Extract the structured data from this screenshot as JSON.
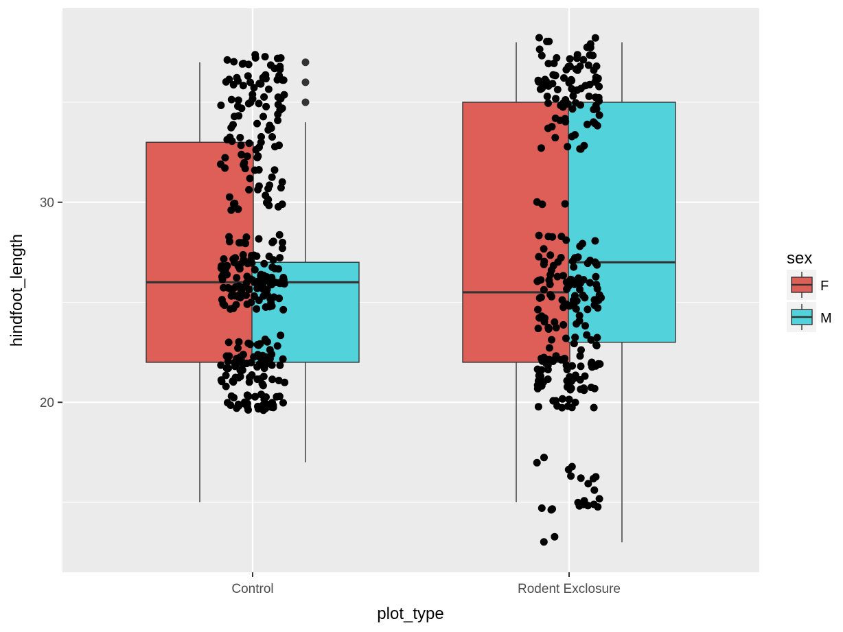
{
  "chart_data": {
    "type": "boxplot",
    "xlabel": "plot_type",
    "ylabel": "hindfoot_length",
    "categories": [
      "Control",
      "Rodent Exclosure"
    ],
    "y_ticks": [
      20,
      30
    ],
    "ylim": [
      11.5,
      39.7
    ],
    "grid": true,
    "legend": {
      "title": "sex",
      "position": "right",
      "entries": [
        "F",
        "M"
      ]
    },
    "colors": {
      "F": "#de5f57",
      "M": "#52d2da",
      "panel": "#ebebeb",
      "grid": "#ffffff",
      "points": "#000000"
    },
    "series": [
      {
        "name": "F",
        "boxes": [
          {
            "category": "Control",
            "whisker_low": 15,
            "q1": 22,
            "median": 26,
            "q3": 33,
            "whisker_high": 37,
            "outliers": []
          },
          {
            "category": "Rodent Exclosure",
            "whisker_low": 15,
            "q1": 22,
            "median": 25.5,
            "q3": 35,
            "whisker_high": 38,
            "outliers": []
          }
        ]
      },
      {
        "name": "M",
        "boxes": [
          {
            "category": "Control",
            "whisker_low": 17,
            "q1": 22,
            "median": 26,
            "q3": 27,
            "whisker_high": 34,
            "outliers": [
              35,
              36,
              37
            ]
          },
          {
            "category": "Rodent Exclosure",
            "whisker_low": 13,
            "q1": 23,
            "median": 27,
            "q3": 35,
            "whisker_high": 38,
            "outliers": []
          }
        ]
      }
    ]
  }
}
